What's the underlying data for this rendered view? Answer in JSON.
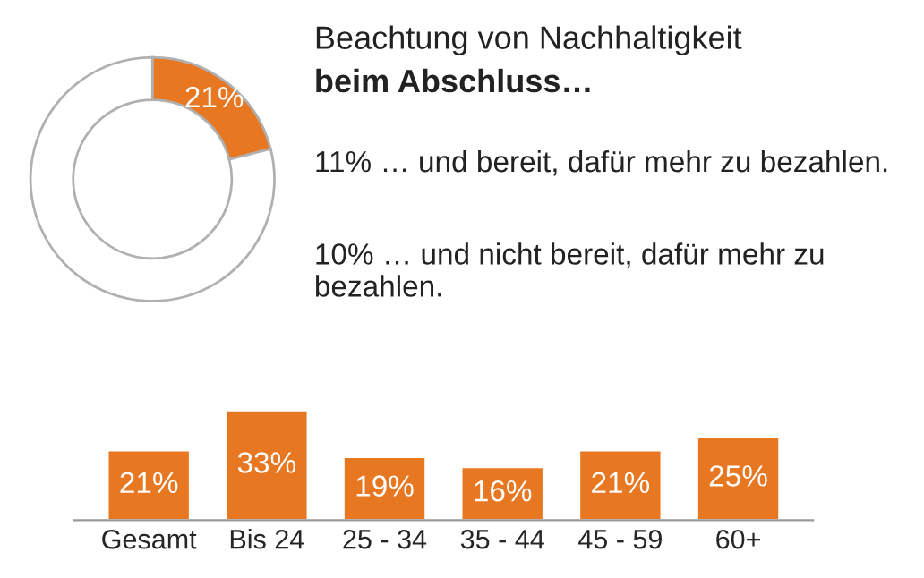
{
  "chart_data": [
    {
      "type": "donut",
      "title": "Beachtung von Nachhaltigkeit",
      "subtitle": "beim Abschluss…",
      "categories": [
        null,
        null
      ],
      "values": [
        21,
        79
      ],
      "colors": [
        "#e87722",
        "#ffffff"
      ],
      "value_labels": [
        "21%",
        null
      ],
      "annotations": [
        "11% … und bereit, dafür mehr zu bezahlen.",
        "10% … und nicht bereit, dafür mehr zu bezahlen."
      ]
    },
    {
      "type": "bar",
      "categories": [
        "Gesamt",
        "Bis 24",
        "25 - 34",
        "35 - 44",
        "45 - 59",
        "60+"
      ],
      "values": [
        21,
        33,
        19,
        16,
        21,
        25
      ],
      "color": "#e87722",
      "value_labels": [
        "21%",
        "33%",
        "19%",
        "16%",
        "21%",
        "25%"
      ],
      "tick_labels": "x"
    }
  ]
}
